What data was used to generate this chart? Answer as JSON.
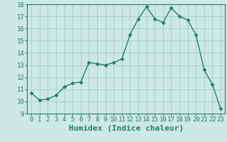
{
  "x": [
    0,
    1,
    2,
    3,
    4,
    5,
    6,
    7,
    8,
    9,
    10,
    11,
    12,
    13,
    14,
    15,
    16,
    17,
    18,
    19,
    20,
    21,
    22,
    23
  ],
  "y": [
    10.7,
    10.1,
    10.2,
    10.5,
    11.2,
    11.5,
    11.6,
    13.2,
    13.1,
    13.0,
    13.2,
    13.5,
    15.5,
    16.8,
    17.8,
    16.8,
    16.5,
    17.7,
    17.0,
    16.7,
    15.5,
    12.6,
    11.4,
    9.4
  ],
  "color": "#2a7a6a",
  "bg_color": "#cce9e5",
  "grid_color": "#aacfcc",
  "xlabel": "Humidex (Indice chaleur)",
  "ylim": [
    9,
    18
  ],
  "xlim_min": -0.5,
  "xlim_max": 23.5,
  "yticks": [
    9,
    10,
    11,
    12,
    13,
    14,
    15,
    16,
    17,
    18
  ],
  "xticks": [
    0,
    1,
    2,
    3,
    4,
    5,
    6,
    7,
    8,
    9,
    10,
    11,
    12,
    13,
    14,
    15,
    16,
    17,
    18,
    19,
    20,
    21,
    22,
    23
  ],
  "marker": "D",
  "markersize": 2.5,
  "linewidth": 1.0,
  "xlabel_fontsize": 8,
  "tick_fontsize": 6.5
}
